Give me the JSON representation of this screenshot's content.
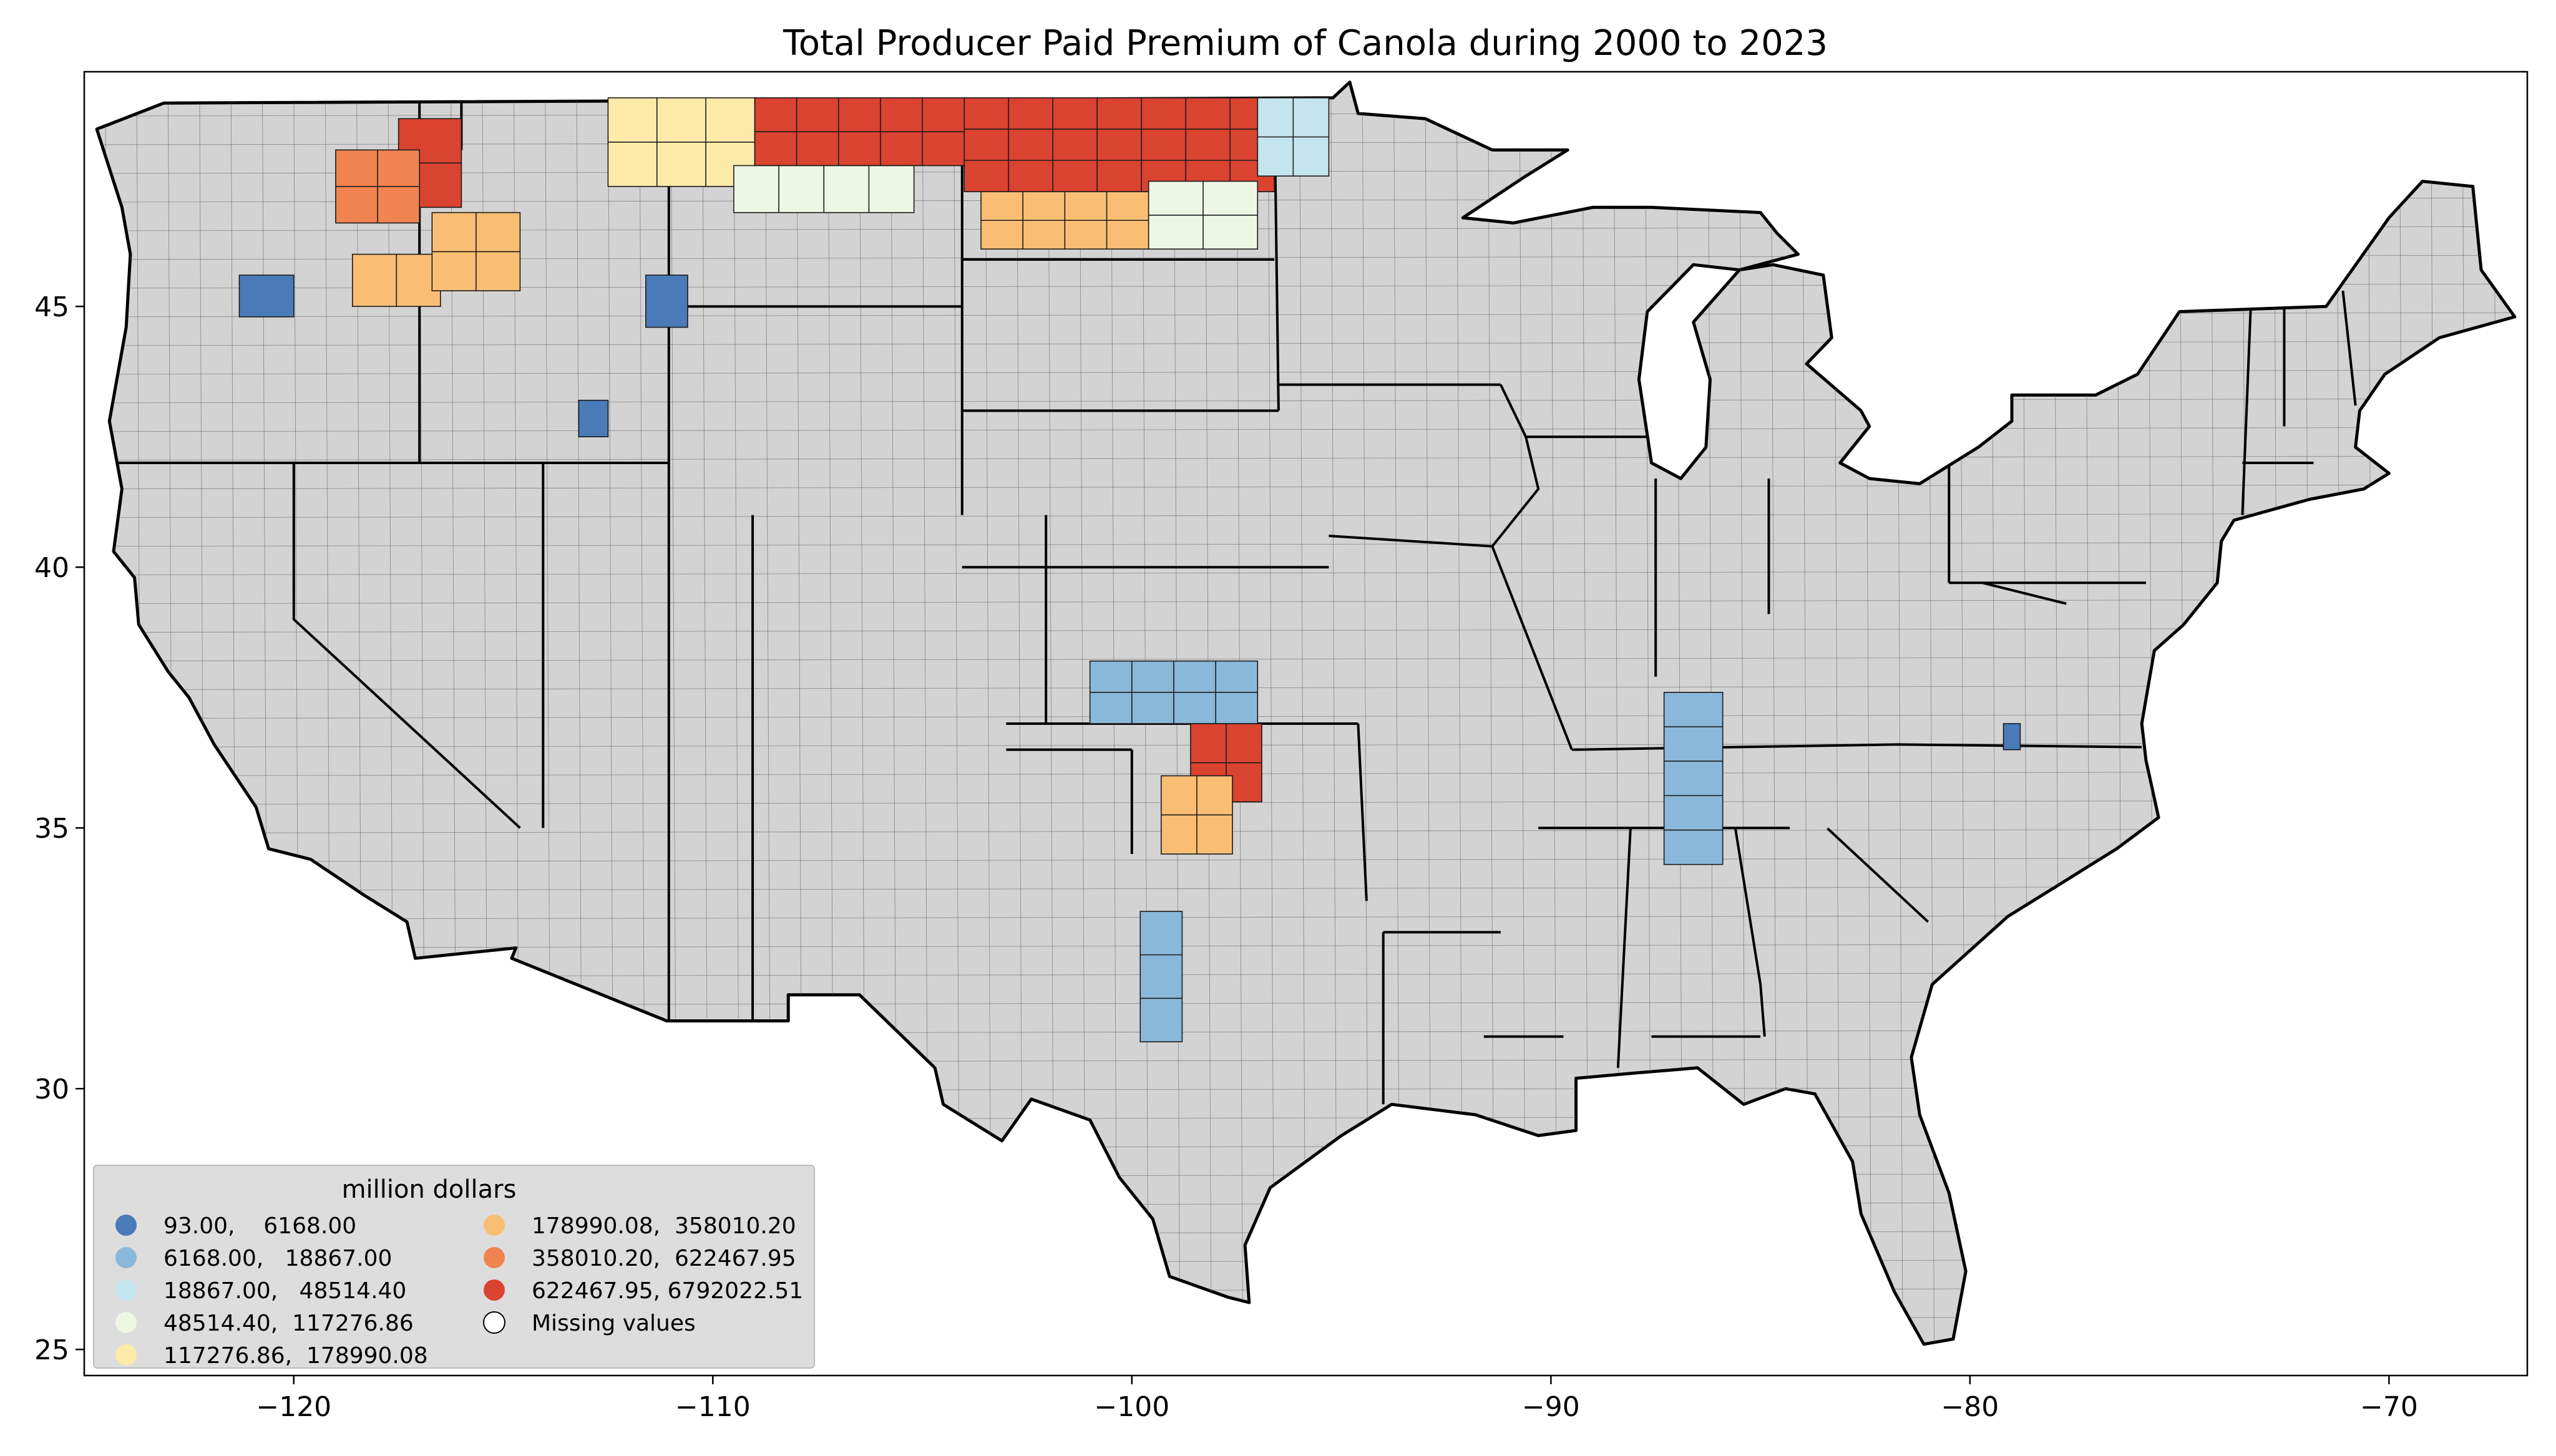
{
  "title": "Total Producer Paid Premium of Canola during 2000 to 2023",
  "chart_data": {
    "type": "choropleth",
    "title": "Total Producer Paid Premium of Canola during 2000 to 2023",
    "xlim": [
      -125,
      -66.7
    ],
    "ylim": [
      24.5,
      49.5
    ],
    "xticks": [
      -120,
      -110,
      -100,
      -90,
      -80,
      -70
    ],
    "yticks": [
      25,
      30,
      35,
      40,
      45
    ],
    "xtick_labels": [
      "−120",
      "−110",
      "−100",
      "−90",
      "−80",
      "−70"
    ],
    "ytick_labels": [
      "25",
      "30",
      "35",
      "40",
      "45"
    ],
    "missing_color": "#d3d3d3",
    "legend": {
      "title": "million dollars",
      "placement": "lower-left",
      "classes": [
        {
          "label": "93.00,    6168.00",
          "color": "#4a7ab8"
        },
        {
          "label": "6168.00,   18867.00",
          "color": "#8ab8da"
        },
        {
          "label": "18867.00,   48514.40",
          "color": "#c4e4ef"
        },
        {
          "label": "48514.40,  117276.86",
          "color": "#eef7e4"
        },
        {
          "label": "117276.86,  178990.08",
          "color": "#fdeaa8"
        },
        {
          "label": "178990.08,  358010.20",
          "color": "#f9be74"
        },
        {
          "label": "358010.20,  622467.95",
          "color": "#f0834f"
        },
        {
          "label": "622467.95, 6792022.51",
          "color": "#d9432f"
        },
        {
          "label": "Missing values",
          "color": "#ffffff"
        }
      ]
    },
    "regions": [
      {
        "area": "North Dakota northwest",
        "lon": [
          -104.0,
          -96.6
        ],
        "lat": [
          47.2,
          49.0
        ],
        "class": 7
      },
      {
        "area": "North Dakota south-central",
        "lon": [
          -103.6,
          -99.6
        ],
        "lat": [
          46.1,
          47.2
        ],
        "class": 5
      },
      {
        "area": "North Dakota southeast",
        "lon": [
          -99.6,
          -97.0
        ],
        "lat": [
          46.1,
          47.4
        ],
        "class": 3
      },
      {
        "area": "Montana northeast",
        "lon": [
          -109.0,
          -104.0
        ],
        "lat": [
          47.7,
          49.0
        ],
        "class": 7
      },
      {
        "area": "Montana north-central",
        "lon": [
          -112.5,
          -109.0
        ],
        "lat": [
          47.3,
          49.0
        ],
        "class": 4
      },
      {
        "area": "Montana central",
        "lon": [
          -109.5,
          -105.2
        ],
        "lat": [
          46.8,
          47.7
        ],
        "class": 3
      },
      {
        "area": "Idaho north",
        "lon": [
          -117.5,
          -116.0
        ],
        "lat": [
          46.9,
          48.6
        ],
        "class": 7
      },
      {
        "area": "Washington east",
        "lon": [
          -119.0,
          -117.0
        ],
        "lat": [
          46.6,
          48.0
        ],
        "class": 6
      },
      {
        "area": "Oregon northeast",
        "lon": [
          -118.6,
          -116.5
        ],
        "lat": [
          45.0,
          46.0
        ],
        "class": 5
      },
      {
        "area": "Idaho Clearwater",
        "lon": [
          -116.7,
          -114.6
        ],
        "lat": [
          45.3,
          46.8
        ],
        "class": 5
      },
      {
        "area": "Minnesota northwest",
        "lon": [
          -97.0,
          -95.3
        ],
        "lat": [
          47.5,
          49.0
        ],
        "class": 2
      },
      {
        "area": "Oklahoma north-central",
        "lon": [
          -98.6,
          -96.9
        ],
        "lat": [
          35.5,
          37.0
        ],
        "class": 7
      },
      {
        "area": "Oklahoma central",
        "lon": [
          -99.3,
          -97.6
        ],
        "lat": [
          34.5,
          36.0
        ],
        "class": 5
      },
      {
        "area": "Kansas south-central",
        "lon": [
          -101.0,
          -97.0
        ],
        "lat": [
          37.0,
          38.2
        ],
        "class": 1
      },
      {
        "area": "Texas north",
        "lon": [
          -99.8,
          -98.8
        ],
        "lat": [
          30.9,
          33.4
        ],
        "class": 1
      },
      {
        "area": "Kentucky / Tennessee / Alabama",
        "lon": [
          -87.3,
          -85.9
        ],
        "lat": [
          34.3,
          37.6
        ],
        "class": 1
      },
      {
        "area": "North Carolina",
        "lon": [
          -79.2,
          -78.8
        ],
        "lat": [
          36.5,
          37.0
        ],
        "class": 0
      },
      {
        "area": "Montana southwest",
        "lon": [
          -111.6,
          -110.6
        ],
        "lat": [
          44.6,
          45.6
        ],
        "class": 0
      },
      {
        "area": "Idaho southeast",
        "lon": [
          -113.2,
          -112.5
        ],
        "lat": [
          42.5,
          43.2
        ],
        "class": 0
      },
      {
        "area": "Oregon north-central",
        "lon": [
          -121.3,
          -120.0
        ],
        "lat": [
          44.8,
          45.6
        ],
        "class": 0
      }
    ]
  }
}
